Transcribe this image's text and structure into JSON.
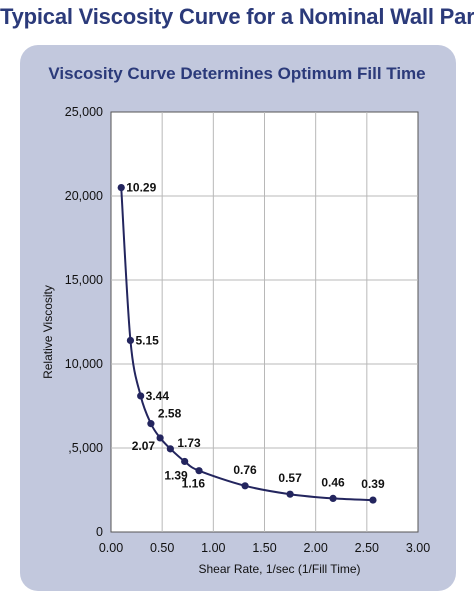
{
  "page": {
    "title": "Typical Viscosity Curve for a Nominal Wall Part"
  },
  "colors": {
    "title": "#2b3a7a",
    "panel": "#c2c8dd",
    "curve": "#23255e",
    "grid": "#b8b8b8"
  },
  "chart_data": {
    "type": "line",
    "title": "Viscosity Curve Determines Optimum Fill Time",
    "xlabel": "Shear Rate, 1/sec (1/Fill Time)",
    "ylabel": "Relative Viscosity",
    "xlim": [
      0,
      3.0
    ],
    "ylim": [
      0,
      25000
    ],
    "xticks": [
      "0.00",
      "0.50",
      "1.00",
      "1.50",
      "2.00",
      "2.50",
      "3.00"
    ],
    "yticks": [
      "0",
      ",5,000",
      "10,000",
      "15,000",
      "20,000",
      "25,000"
    ],
    "grid": true,
    "series": [
      {
        "points": [
          {
            "x": 0.1,
            "y": 20500,
            "label": "10.29"
          },
          {
            "x": 0.19,
            "y": 11400,
            "label": "5.15"
          },
          {
            "x": 0.29,
            "y": 8100,
            "label": "3.44"
          },
          {
            "x": 0.39,
            "y": 6450,
            "label": "2.58"
          },
          {
            "x": 0.48,
            "y": 5600,
            "label": "2.07"
          },
          {
            "x": 0.58,
            "y": 4950,
            "label": "1.73"
          },
          {
            "x": 0.72,
            "y": 4200,
            "label": "1.39"
          },
          {
            "x": 0.86,
            "y": 3650,
            "label": "1.16"
          },
          {
            "x": 1.31,
            "y": 2750,
            "label": "0.76"
          },
          {
            "x": 1.75,
            "y": 2250,
            "label": "0.57"
          },
          {
            "x": 2.17,
            "y": 2000,
            "label": "0.46"
          },
          {
            "x": 2.56,
            "y": 1900,
            "label": "0.39"
          }
        ]
      }
    ]
  }
}
